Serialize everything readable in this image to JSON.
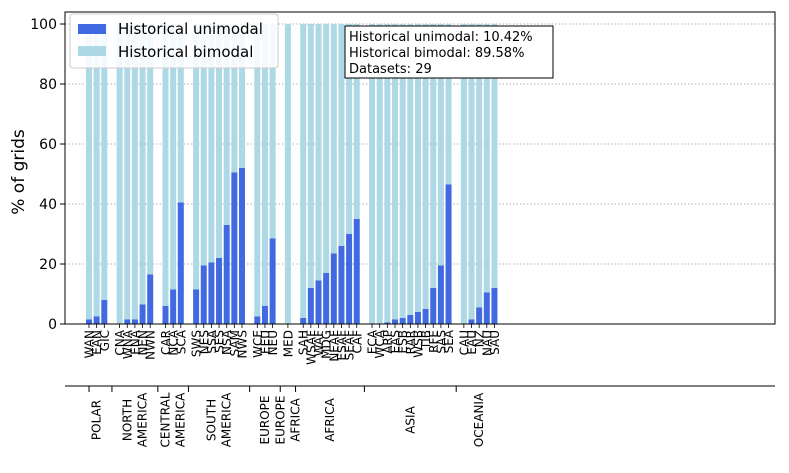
{
  "chart_data": {
    "type": "bar",
    "stacked": true,
    "ylabel": "% of grids",
    "ylim": [
      0,
      104
    ],
    "yticks": [
      0,
      20,
      40,
      60,
      80,
      100
    ],
    "grid": "y-dotted",
    "legend_position": "top-left",
    "colors": {
      "unimodal": "#4169E1",
      "bimodal": "#ADD8E6"
    },
    "series": [
      {
        "name": "Historical unimodal",
        "key": "unimodal"
      },
      {
        "name": "Historical bimodal",
        "key": "bimodal"
      }
    ],
    "annotation": [
      "Historical unimodal: 10.42%",
      "Historical bimodal: 89.58%",
      "Datasets: 29"
    ],
    "region_groups": [
      {
        "name": [
          "POLAR"
        ],
        "regions": [
          [
            "WAN",
            1.5
          ],
          [
            "EAN",
            2.5
          ],
          [
            "GIC",
            8
          ]
        ]
      },
      {
        "name": [
          "NORTH",
          "AMERICA"
        ],
        "regions": [
          [
            "CNA",
            0
          ],
          [
            "WNA",
            1.5
          ],
          [
            "ENA",
            1.5
          ],
          [
            "NEN",
            6.5
          ],
          [
            "NWN",
            16.5
          ]
        ]
      },
      {
        "name": [
          "CENTRAL",
          "AMERICA"
        ],
        "regions": [
          [
            "CAR",
            6
          ],
          [
            "NCA",
            11.5
          ],
          [
            "SCA",
            40.5
          ]
        ]
      },
      {
        "name": [
          "SOUTH",
          "AMERICA"
        ],
        "regions": [
          [
            "SWS",
            11.5
          ],
          [
            "NES",
            19.5
          ],
          [
            "SSA",
            20.5
          ],
          [
            "SES",
            22
          ],
          [
            "NSA",
            33
          ],
          [
            "SAM",
            50.5
          ],
          [
            "NWS",
            52
          ]
        ]
      },
      {
        "name": [
          "EUROPE"
        ],
        "regions": [
          [
            "WCE",
            2.5
          ],
          [
            "EEU",
            6
          ],
          [
            "NEU",
            28.5
          ]
        ]
      },
      {
        "name": [
          "EUROPE",
          "AFRICA"
        ],
        "regions": [
          [
            "MED",
            0
          ]
        ]
      },
      {
        "name": [
          "AFRICA"
        ],
        "regions": [
          [
            "SAH",
            2
          ],
          [
            "WSAF",
            12
          ],
          [
            "WAF",
            14.5
          ],
          [
            "MDG",
            17
          ],
          [
            "NEAF",
            23.5
          ],
          [
            "ESAF",
            26
          ],
          [
            "SEAF",
            30
          ],
          [
            "CAF",
            35
          ]
        ]
      },
      {
        "name": [
          "ASIA"
        ],
        "regions": [
          [
            "ECA",
            0
          ],
          [
            "WCA",
            0
          ],
          [
            "ARP",
            0.5
          ],
          [
            "EAS",
            1.5
          ],
          [
            "ESB",
            2
          ],
          [
            "RAR",
            3
          ],
          [
            "WSB",
            4
          ],
          [
            "TIB",
            5
          ],
          [
            "RFE",
            12
          ],
          [
            "SAS",
            19.5
          ],
          [
            "SEA",
            46.5
          ]
        ]
      },
      {
        "name": [
          "OCEANIA"
        ],
        "regions": [
          [
            "CAU",
            0
          ],
          [
            "EAU",
            1.5
          ],
          [
            "NZ",
            5.5
          ],
          [
            "NAU",
            10.5
          ],
          [
            "SAU",
            12
          ]
        ]
      }
    ]
  }
}
